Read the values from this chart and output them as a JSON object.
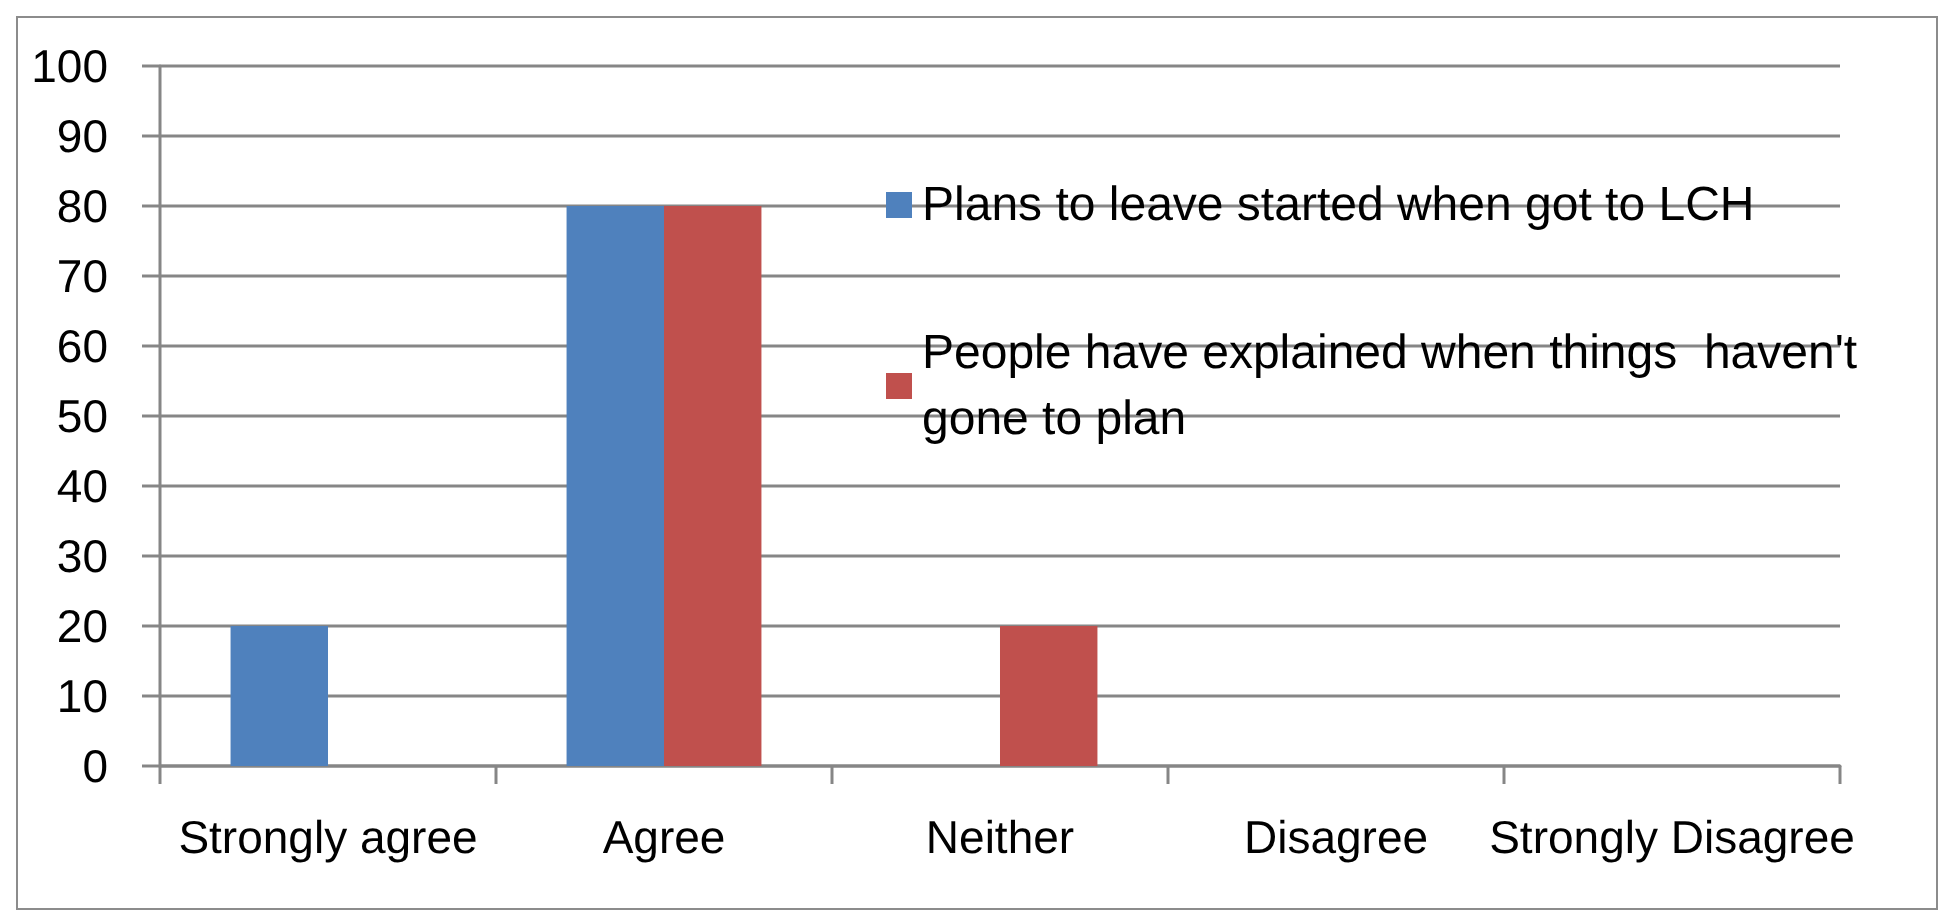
{
  "chart_data": {
    "type": "bar",
    "categories": [
      "Strongly agree",
      "Agree",
      "Neither",
      "Disagree",
      "Strongly Disagree"
    ],
    "series": [
      {
        "name": "Plans to leave started when got to LCH",
        "color": "#4f81bd",
        "values": [
          20,
          80,
          0,
          0,
          0
        ]
      },
      {
        "name": "People have explained when things  haven't gone to plan",
        "color": "#c0504d",
        "values": [
          0,
          80,
          20,
          0,
          0
        ]
      }
    ],
    "ylim": [
      0,
      100
    ],
    "yticks": [
      0,
      10,
      20,
      30,
      40,
      50,
      60,
      70,
      80,
      90,
      100
    ],
    "grid": "y",
    "legend": "top right"
  }
}
